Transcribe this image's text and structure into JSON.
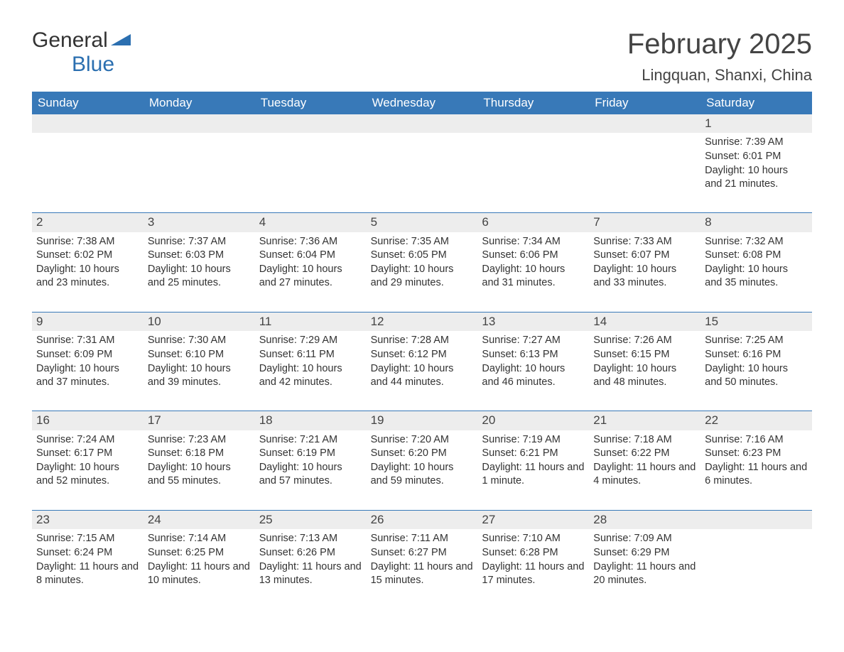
{
  "logo": {
    "text1": "General",
    "text2": "Blue",
    "brand_color": "#2b6fb0"
  },
  "title": "February 2025",
  "location": "Lingquan, Shanxi, China",
  "colors": {
    "header_bg": "#3879b8",
    "header_text": "#ffffff",
    "daynum_bg": "#ededed",
    "border": "#3879b8",
    "body_text": "#333333",
    "page_bg": "#ffffff"
  },
  "fonts": {
    "title_size": 40,
    "location_size": 22,
    "header_size": 17,
    "cell_size": 14.5
  },
  "day_names": [
    "Sunday",
    "Monday",
    "Tuesday",
    "Wednesday",
    "Thursday",
    "Friday",
    "Saturday"
  ],
  "weeks": [
    [
      {
        "n": "",
        "empty": true
      },
      {
        "n": "",
        "empty": true
      },
      {
        "n": "",
        "empty": true
      },
      {
        "n": "",
        "empty": true
      },
      {
        "n": "",
        "empty": true
      },
      {
        "n": "",
        "empty": true
      },
      {
        "n": "1",
        "sunrise": "Sunrise: 7:39 AM",
        "sunset": "Sunset: 6:01 PM",
        "daylight": "Daylight: 10 hours and 21 minutes."
      }
    ],
    [
      {
        "n": "2",
        "sunrise": "Sunrise: 7:38 AM",
        "sunset": "Sunset: 6:02 PM",
        "daylight": "Daylight: 10 hours and 23 minutes."
      },
      {
        "n": "3",
        "sunrise": "Sunrise: 7:37 AM",
        "sunset": "Sunset: 6:03 PM",
        "daylight": "Daylight: 10 hours and 25 minutes."
      },
      {
        "n": "4",
        "sunrise": "Sunrise: 7:36 AM",
        "sunset": "Sunset: 6:04 PM",
        "daylight": "Daylight: 10 hours and 27 minutes."
      },
      {
        "n": "5",
        "sunrise": "Sunrise: 7:35 AM",
        "sunset": "Sunset: 6:05 PM",
        "daylight": "Daylight: 10 hours and 29 minutes."
      },
      {
        "n": "6",
        "sunrise": "Sunrise: 7:34 AM",
        "sunset": "Sunset: 6:06 PM",
        "daylight": "Daylight: 10 hours and 31 minutes."
      },
      {
        "n": "7",
        "sunrise": "Sunrise: 7:33 AM",
        "sunset": "Sunset: 6:07 PM",
        "daylight": "Daylight: 10 hours and 33 minutes."
      },
      {
        "n": "8",
        "sunrise": "Sunrise: 7:32 AM",
        "sunset": "Sunset: 6:08 PM",
        "daylight": "Daylight: 10 hours and 35 minutes."
      }
    ],
    [
      {
        "n": "9",
        "sunrise": "Sunrise: 7:31 AM",
        "sunset": "Sunset: 6:09 PM",
        "daylight": "Daylight: 10 hours and 37 minutes."
      },
      {
        "n": "10",
        "sunrise": "Sunrise: 7:30 AM",
        "sunset": "Sunset: 6:10 PM",
        "daylight": "Daylight: 10 hours and 39 minutes."
      },
      {
        "n": "11",
        "sunrise": "Sunrise: 7:29 AM",
        "sunset": "Sunset: 6:11 PM",
        "daylight": "Daylight: 10 hours and 42 minutes."
      },
      {
        "n": "12",
        "sunrise": "Sunrise: 7:28 AM",
        "sunset": "Sunset: 6:12 PM",
        "daylight": "Daylight: 10 hours and 44 minutes."
      },
      {
        "n": "13",
        "sunrise": "Sunrise: 7:27 AM",
        "sunset": "Sunset: 6:13 PM",
        "daylight": "Daylight: 10 hours and 46 minutes."
      },
      {
        "n": "14",
        "sunrise": "Sunrise: 7:26 AM",
        "sunset": "Sunset: 6:15 PM",
        "daylight": "Daylight: 10 hours and 48 minutes."
      },
      {
        "n": "15",
        "sunrise": "Sunrise: 7:25 AM",
        "sunset": "Sunset: 6:16 PM",
        "daylight": "Daylight: 10 hours and 50 minutes."
      }
    ],
    [
      {
        "n": "16",
        "sunrise": "Sunrise: 7:24 AM",
        "sunset": "Sunset: 6:17 PM",
        "daylight": "Daylight: 10 hours and 52 minutes."
      },
      {
        "n": "17",
        "sunrise": "Sunrise: 7:23 AM",
        "sunset": "Sunset: 6:18 PM",
        "daylight": "Daylight: 10 hours and 55 minutes."
      },
      {
        "n": "18",
        "sunrise": "Sunrise: 7:21 AM",
        "sunset": "Sunset: 6:19 PM",
        "daylight": "Daylight: 10 hours and 57 minutes."
      },
      {
        "n": "19",
        "sunrise": "Sunrise: 7:20 AM",
        "sunset": "Sunset: 6:20 PM",
        "daylight": "Daylight: 10 hours and 59 minutes."
      },
      {
        "n": "20",
        "sunrise": "Sunrise: 7:19 AM",
        "sunset": "Sunset: 6:21 PM",
        "daylight": "Daylight: 11 hours and 1 minute."
      },
      {
        "n": "21",
        "sunrise": "Sunrise: 7:18 AM",
        "sunset": "Sunset: 6:22 PM",
        "daylight": "Daylight: 11 hours and 4 minutes."
      },
      {
        "n": "22",
        "sunrise": "Sunrise: 7:16 AM",
        "sunset": "Sunset: 6:23 PM",
        "daylight": "Daylight: 11 hours and 6 minutes."
      }
    ],
    [
      {
        "n": "23",
        "sunrise": "Sunrise: 7:15 AM",
        "sunset": "Sunset: 6:24 PM",
        "daylight": "Daylight: 11 hours and 8 minutes."
      },
      {
        "n": "24",
        "sunrise": "Sunrise: 7:14 AM",
        "sunset": "Sunset: 6:25 PM",
        "daylight": "Daylight: 11 hours and 10 minutes."
      },
      {
        "n": "25",
        "sunrise": "Sunrise: 7:13 AM",
        "sunset": "Sunset: 6:26 PM",
        "daylight": "Daylight: 11 hours and 13 minutes."
      },
      {
        "n": "26",
        "sunrise": "Sunrise: 7:11 AM",
        "sunset": "Sunset: 6:27 PM",
        "daylight": "Daylight: 11 hours and 15 minutes."
      },
      {
        "n": "27",
        "sunrise": "Sunrise: 7:10 AM",
        "sunset": "Sunset: 6:28 PM",
        "daylight": "Daylight: 11 hours and 17 minutes."
      },
      {
        "n": "28",
        "sunrise": "Sunrise: 7:09 AM",
        "sunset": "Sunset: 6:29 PM",
        "daylight": "Daylight: 11 hours and 20 minutes."
      },
      {
        "n": "",
        "empty": true
      }
    ]
  ]
}
